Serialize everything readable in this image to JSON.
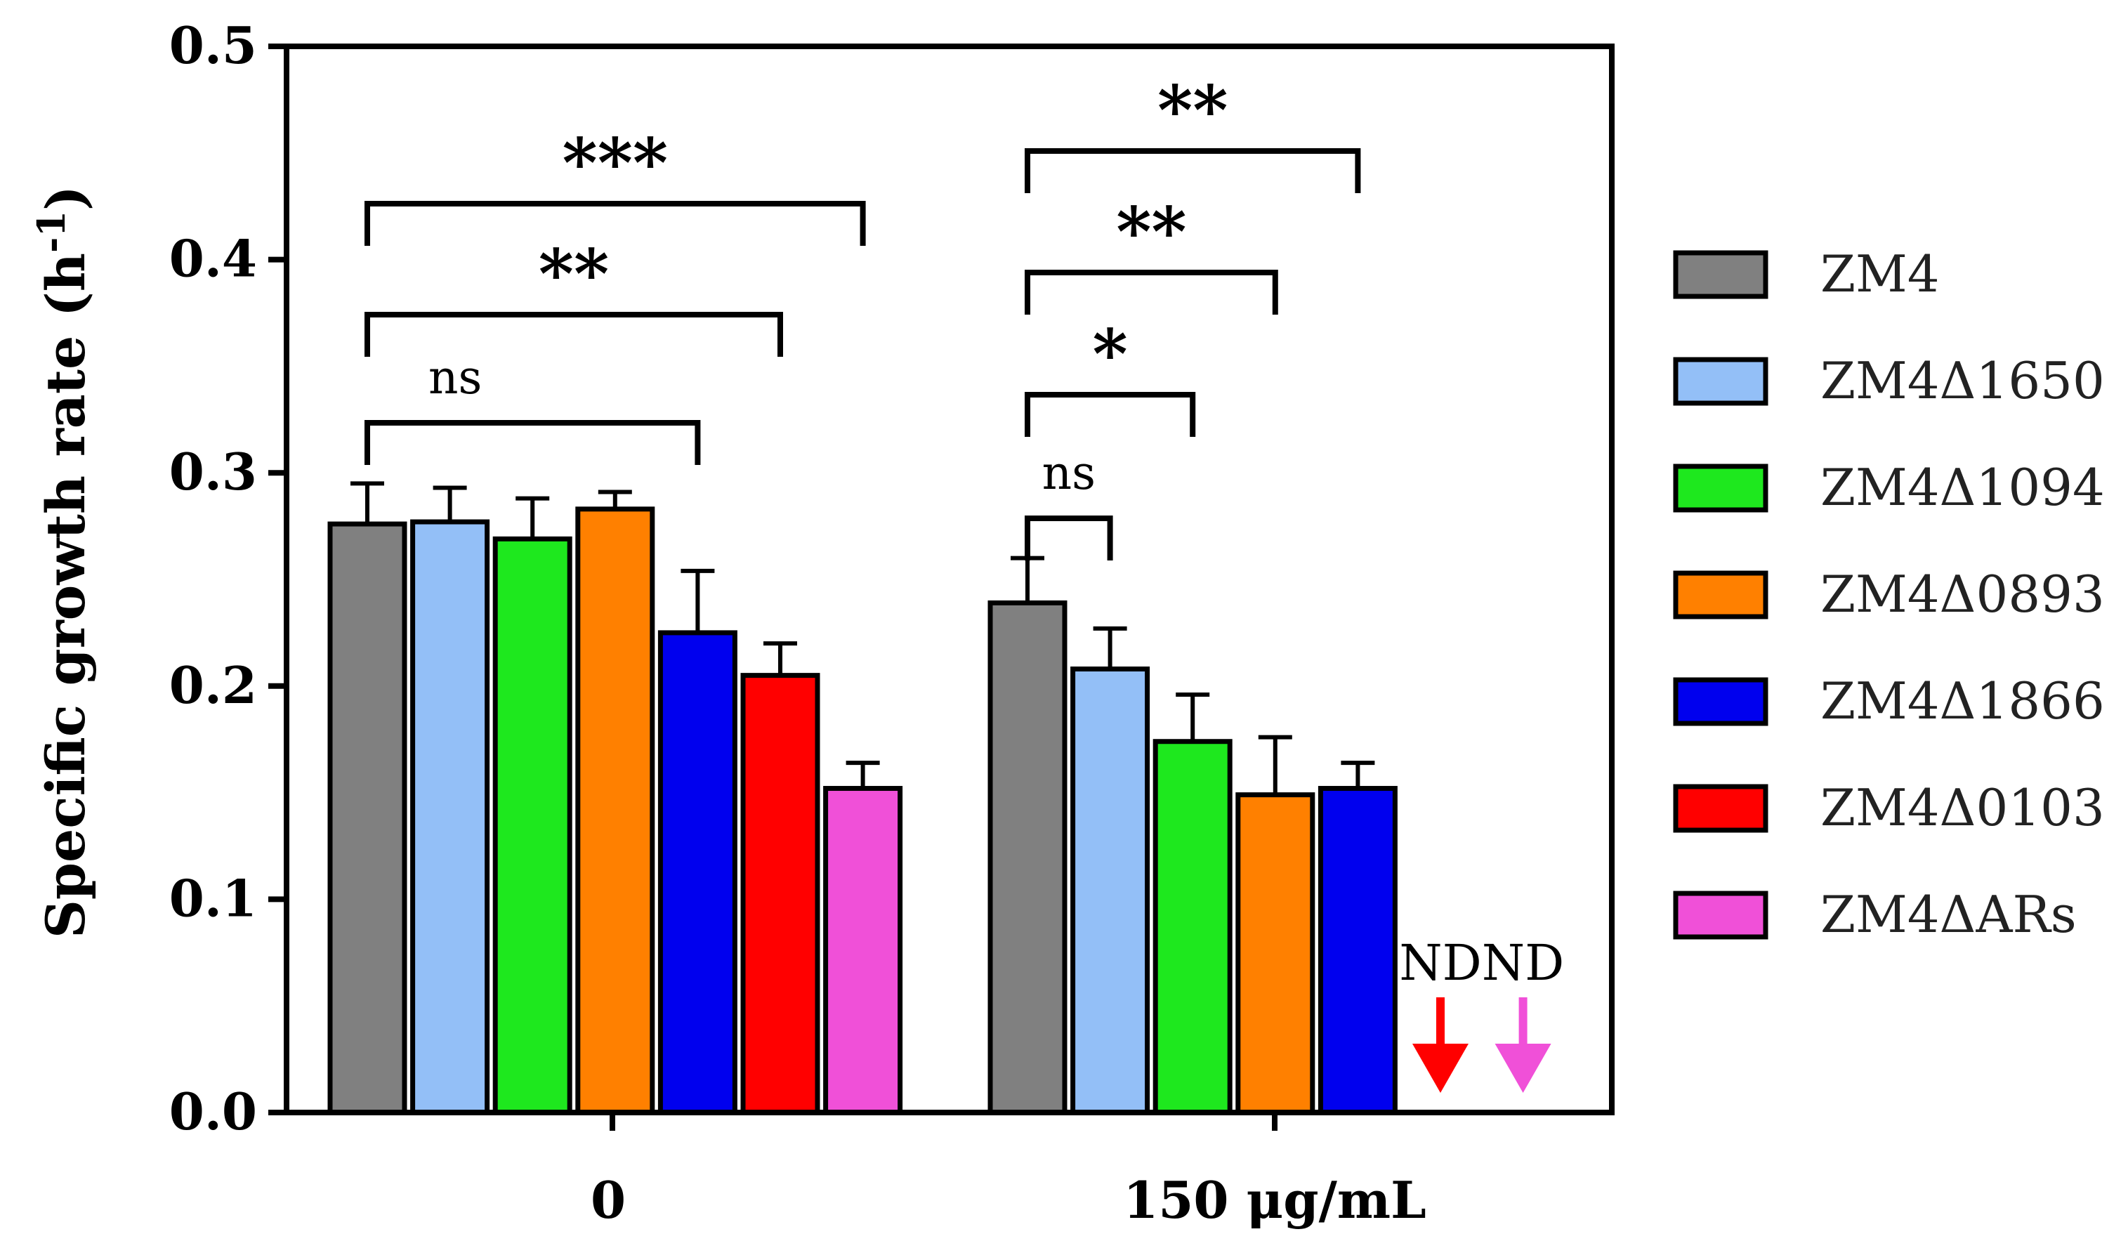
{
  "chart_data": {
    "type": "bar",
    "title": "",
    "xlabel": "",
    "ylabel": "Specific growth rate (h",
    "ylabel_superscript": "-1",
    "ylabel_close": ")",
    "ylim": [
      0,
      0.5
    ],
    "yticks": [
      "0.0",
      "0.1",
      "0.2",
      "0.3",
      "0.4",
      "0.5"
    ],
    "categories": [
      "0",
      "150 μg/mL"
    ],
    "series": [
      {
        "name": "ZM4",
        "color": "#808080",
        "values": [
          0.276,
          0.239
        ],
        "errors": [
          0.019,
          0.021
        ]
      },
      {
        "name": "ZM4Δ1650",
        "color": "#93bff7",
        "values": [
          0.277,
          0.208
        ],
        "errors": [
          0.016,
          0.019
        ]
      },
      {
        "name": "ZM4Δ1094",
        "color": "#1ee81e",
        "values": [
          0.269,
          0.174
        ],
        "errors": [
          0.019,
          0.022
        ]
      },
      {
        "name": "ZM4Δ0893",
        "color": "#ff8000",
        "values": [
          0.283,
          0.149
        ],
        "errors": [
          0.008,
          0.027
        ]
      },
      {
        "name": "ZM4Δ1866",
        "color": "#0000ee",
        "values": [
          0.225,
          0.152
        ],
        "errors": [
          0.029,
          0.012
        ]
      },
      {
        "name": "ZM4Δ0103",
        "color": "#ff0000",
        "values": [
          0.205,
          null
        ],
        "errors": [
          0.015,
          null
        ]
      },
      {
        "name": "ZM4ΔARs",
        "color": "#f050d8",
        "values": [
          0.152,
          null
        ],
        "errors": [
          0.012,
          null
        ]
      }
    ],
    "not_detected_label": "ND",
    "legend_position": "right",
    "significance": [
      {
        "category": 0,
        "from_series": 0,
        "to_series": 4,
        "label": "ns"
      },
      {
        "category": 0,
        "from_series": 0,
        "to_series": 5,
        "label": "**"
      },
      {
        "category": 0,
        "from_series": 0,
        "to_series": 6,
        "label": "***"
      },
      {
        "category": 1,
        "from_series": 0,
        "to_series": 1,
        "label": "ns"
      },
      {
        "category": 1,
        "from_series": 0,
        "to_series": 2,
        "label": "*"
      },
      {
        "category": 1,
        "from_series": 0,
        "to_series": 3,
        "label": "**"
      },
      {
        "category": 1,
        "from_series": 0,
        "to_series": 4,
        "label": "**"
      }
    ]
  }
}
